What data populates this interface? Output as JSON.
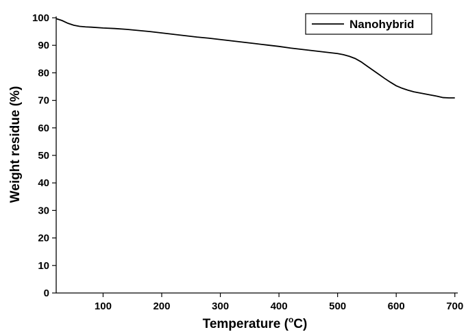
{
  "chart_data": {
    "type": "line",
    "xlabel": "Temperature (°C)",
    "xlabel_parts": {
      "before": "Temperature (",
      "degree": "o",
      "unit": "C)"
    },
    "ylabel": "Weight residue (%)",
    "xlim": [
      20,
      705
    ],
    "ylim": [
      0,
      100
    ],
    "xticks": [
      100,
      200,
      300,
      400,
      500,
      600,
      700
    ],
    "yticks": [
      0,
      10,
      20,
      30,
      40,
      50,
      60,
      70,
      80,
      90,
      100
    ],
    "grid": false,
    "legend_position": "top-right",
    "series": [
      {
        "name": "Nanohybrid",
        "color": "#000000",
        "x": [
          20,
          30,
          40,
          50,
          60,
          70,
          80,
          100,
          120,
          140,
          160,
          180,
          200,
          220,
          240,
          260,
          280,
          300,
          320,
          340,
          360,
          380,
          400,
          420,
          440,
          460,
          480,
          500,
          510,
          520,
          530,
          540,
          550,
          560,
          570,
          580,
          590,
          600,
          610,
          620,
          630,
          640,
          650,
          660,
          670,
          680,
          690,
          700
        ],
        "y": [
          99.7,
          99.0,
          98.0,
          97.3,
          96.9,
          96.7,
          96.6,
          96.3,
          96.1,
          95.8,
          95.4,
          95.0,
          94.5,
          94.0,
          93.5,
          93.0,
          92.6,
          92.1,
          91.6,
          91.1,
          90.6,
          90.1,
          89.6,
          89.0,
          88.5,
          88.0,
          87.5,
          87.0,
          86.6,
          86.0,
          85.2,
          84.0,
          82.5,
          81.0,
          79.5,
          78.0,
          76.6,
          75.3,
          74.4,
          73.7,
          73.1,
          72.7,
          72.3,
          71.9,
          71.5,
          71.0,
          70.9,
          70.9
        ]
      }
    ]
  }
}
